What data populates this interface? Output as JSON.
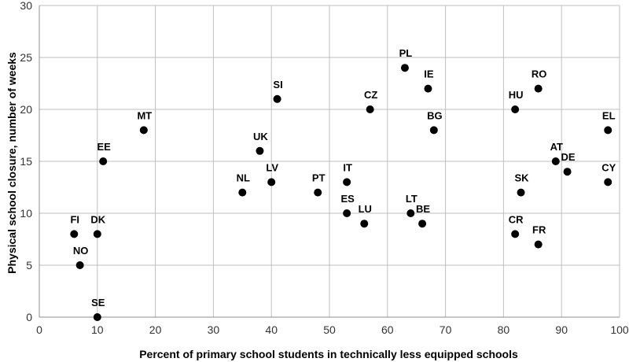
{
  "chart_data": {
    "type": "scatter",
    "xlabel": "Percent of primary school students in technically less equipped schools",
    "ylabel": "Physical school closure, number of weeks",
    "xlim": [
      0,
      100
    ],
    "ylim": [
      0,
      30
    ],
    "xticks": [
      0,
      10,
      20,
      30,
      40,
      50,
      60,
      70,
      80,
      90,
      100
    ],
    "yticks": [
      0,
      5,
      10,
      15,
      20,
      25,
      30
    ],
    "grid": true,
    "legend": "none",
    "marker_color": "#000000",
    "points": [
      {
        "label": "FI",
        "x": 6,
        "y": 8
      },
      {
        "label": "DK",
        "x": 10,
        "y": 8
      },
      {
        "label": "NO",
        "x": 7,
        "y": 5
      },
      {
        "label": "SE",
        "x": 10,
        "y": 0
      },
      {
        "label": "EE",
        "x": 11,
        "y": 15
      },
      {
        "label": "MT",
        "x": 18,
        "y": 18
      },
      {
        "label": "NL",
        "x": 35,
        "y": 12
      },
      {
        "label": "UK",
        "x": 38,
        "y": 16
      },
      {
        "label": "LV",
        "x": 40,
        "y": 13
      },
      {
        "label": "SI",
        "x": 41,
        "y": 21
      },
      {
        "label": "PT",
        "x": 48,
        "y": 12
      },
      {
        "label": "IT",
        "x": 53,
        "y": 13
      },
      {
        "label": "ES",
        "x": 53,
        "y": 10
      },
      {
        "label": "LU",
        "x": 56,
        "y": 9
      },
      {
        "label": "CZ",
        "x": 57,
        "y": 20
      },
      {
        "label": "PL",
        "x": 63,
        "y": 24
      },
      {
        "label": "LT",
        "x": 64,
        "y": 10
      },
      {
        "label": "BE",
        "x": 66,
        "y": 9
      },
      {
        "label": "IE",
        "x": 67,
        "y": 22
      },
      {
        "label": "BG",
        "x": 68,
        "y": 18
      },
      {
        "label": "CR",
        "x": 82,
        "y": 8
      },
      {
        "label": "HU",
        "x": 82,
        "y": 20
      },
      {
        "label": "SK",
        "x": 83,
        "y": 12
      },
      {
        "label": "FR",
        "x": 86,
        "y": 7
      },
      {
        "label": "RO",
        "x": 86,
        "y": 22
      },
      {
        "label": "AT",
        "x": 89,
        "y": 15
      },
      {
        "label": "DE",
        "x": 91,
        "y": 14
      },
      {
        "label": "EL",
        "x": 98,
        "y": 18
      },
      {
        "label": "CY",
        "x": 98,
        "y": 13
      }
    ]
  }
}
